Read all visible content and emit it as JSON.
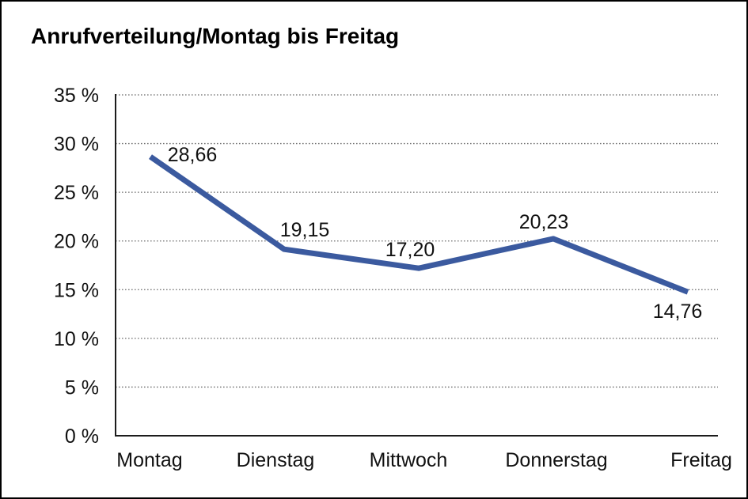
{
  "page": {
    "title": "Anrufverteilung/Montag bis Freitag"
  },
  "chart_data": {
    "type": "line",
    "title": "Anrufverteilung/Montag bis Freitag",
    "categories": [
      "Montag",
      "Dienstag",
      "Mittwoch",
      "Donnerstag",
      "Freitag"
    ],
    "series": [
      {
        "name": "Anrufverteilung",
        "values": [
          28.66,
          19.15,
          17.2,
          20.23,
          14.76
        ]
      }
    ],
    "value_labels": [
      "28,66",
      "19,15",
      "17,20",
      "20,23",
      "14,76"
    ],
    "ytick_labels": [
      "0 %",
      "5 %",
      "10 %",
      "15 %",
      "20 %",
      "25 %",
      "30 %",
      "35 %"
    ],
    "ylim": [
      0,
      35
    ],
    "ytick_step": 5,
    "xlabel": "",
    "ylabel": "",
    "grid": "horizontal-dotted",
    "legend": "none",
    "colors": {
      "line": "#3b5a9f",
      "axis": "#1c1c1c",
      "gridline": "#6e6e6e",
      "text": "#111111",
      "background": "#ffffff",
      "border": "#000000"
    }
  }
}
